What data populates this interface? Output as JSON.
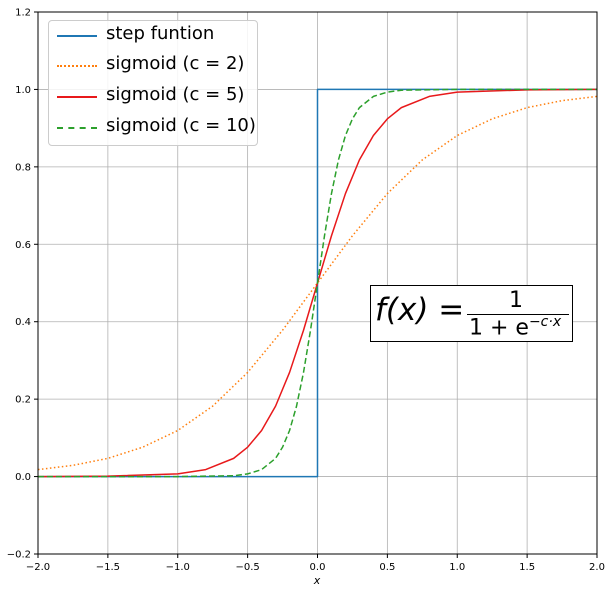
{
  "chart_data": {
    "type": "line",
    "title": "",
    "xlabel": "x",
    "ylabel": "",
    "xlim": [
      -2.0,
      2.0
    ],
    "ylim": [
      -0.2,
      1.2
    ],
    "grid": true,
    "legend_position": "upper-left",
    "xticks": [
      "−2.0",
      "−1.5",
      "−1.0",
      "−0.5",
      "0.0",
      "0.5",
      "1.0",
      "1.5",
      "2.0"
    ],
    "yticks": [
      "−0.2",
      "0.0",
      "0.2",
      "0.4",
      "0.6",
      "0.8",
      "1.0",
      "1.2"
    ],
    "xtick_values": [
      -2.0,
      -1.5,
      -1.0,
      -0.5,
      0.0,
      0.5,
      1.0,
      1.5,
      2.0
    ],
    "ytick_values": [
      -0.2,
      0.0,
      0.2,
      0.4,
      0.6,
      0.8,
      1.0,
      1.2
    ],
    "series": [
      {
        "name": "step funtion",
        "color": "#1f77b4",
        "style": "solid",
        "x": [
          -2.0,
          0.0,
          0.0,
          2.0
        ],
        "y": [
          0.0,
          0.0,
          1.0,
          1.0
        ]
      },
      {
        "name": "sigmoid (c = 2)",
        "color": "#ff7f0e",
        "style": "dotted",
        "x": [
          -2.0,
          -1.75,
          -1.5,
          -1.25,
          -1.0,
          -0.75,
          -0.5,
          -0.25,
          0.0,
          0.25,
          0.5,
          0.75,
          1.0,
          1.25,
          1.5,
          1.75,
          2.0
        ],
        "y": [
          0.018,
          0.029,
          0.047,
          0.076,
          0.119,
          0.182,
          0.269,
          0.378,
          0.5,
          0.622,
          0.731,
          0.818,
          0.881,
          0.924,
          0.953,
          0.971,
          0.982
        ]
      },
      {
        "name": "sigmoid (c = 5)",
        "color": "#e8191b",
        "style": "solid",
        "x": [
          -2.0,
          -1.5,
          -1.0,
          -0.8,
          -0.6,
          -0.5,
          -0.4,
          -0.3,
          -0.2,
          -0.1,
          0.0,
          0.1,
          0.2,
          0.3,
          0.4,
          0.5,
          0.6,
          0.8,
          1.0,
          1.5,
          2.0
        ],
        "y": [
          0.0,
          0.001,
          0.007,
          0.018,
          0.047,
          0.076,
          0.119,
          0.182,
          0.269,
          0.378,
          0.5,
          0.622,
          0.731,
          0.818,
          0.881,
          0.924,
          0.953,
          0.982,
          0.993,
          0.999,
          1.0
        ]
      },
      {
        "name": "sigmoid (c = 10)",
        "color": "#2ca02c",
        "style": "dashed",
        "x": [
          -2.0,
          -1.0,
          -0.6,
          -0.5,
          -0.4,
          -0.3,
          -0.25,
          -0.2,
          -0.15,
          -0.1,
          -0.05,
          0.0,
          0.05,
          0.1,
          0.15,
          0.2,
          0.25,
          0.3,
          0.4,
          0.5,
          0.6,
          1.0,
          2.0
        ],
        "y": [
          0.0,
          0.0,
          0.002,
          0.007,
          0.018,
          0.047,
          0.076,
          0.119,
          0.182,
          0.269,
          0.378,
          0.5,
          0.622,
          0.731,
          0.818,
          0.881,
          0.924,
          0.953,
          0.982,
          0.993,
          0.998,
          1.0,
          1.0
        ]
      }
    ],
    "legend": [
      {
        "label": "step funtion",
        "color": "#1f77b4",
        "style": "solid"
      },
      {
        "label": "sigmoid (c = 2)",
        "color": "#ff7f0e",
        "style": "dotted"
      },
      {
        "label": "sigmoid (c = 5)",
        "color": "#e8191b",
        "style": "solid"
      },
      {
        "label": "sigmoid (c = 10)",
        "color": "#2ca02c",
        "style": "dashed"
      }
    ],
    "annotation": {
      "lhs": "f(x) =",
      "numerator": "1",
      "denominator": "1 + e",
      "exponent": "−c·x"
    }
  }
}
